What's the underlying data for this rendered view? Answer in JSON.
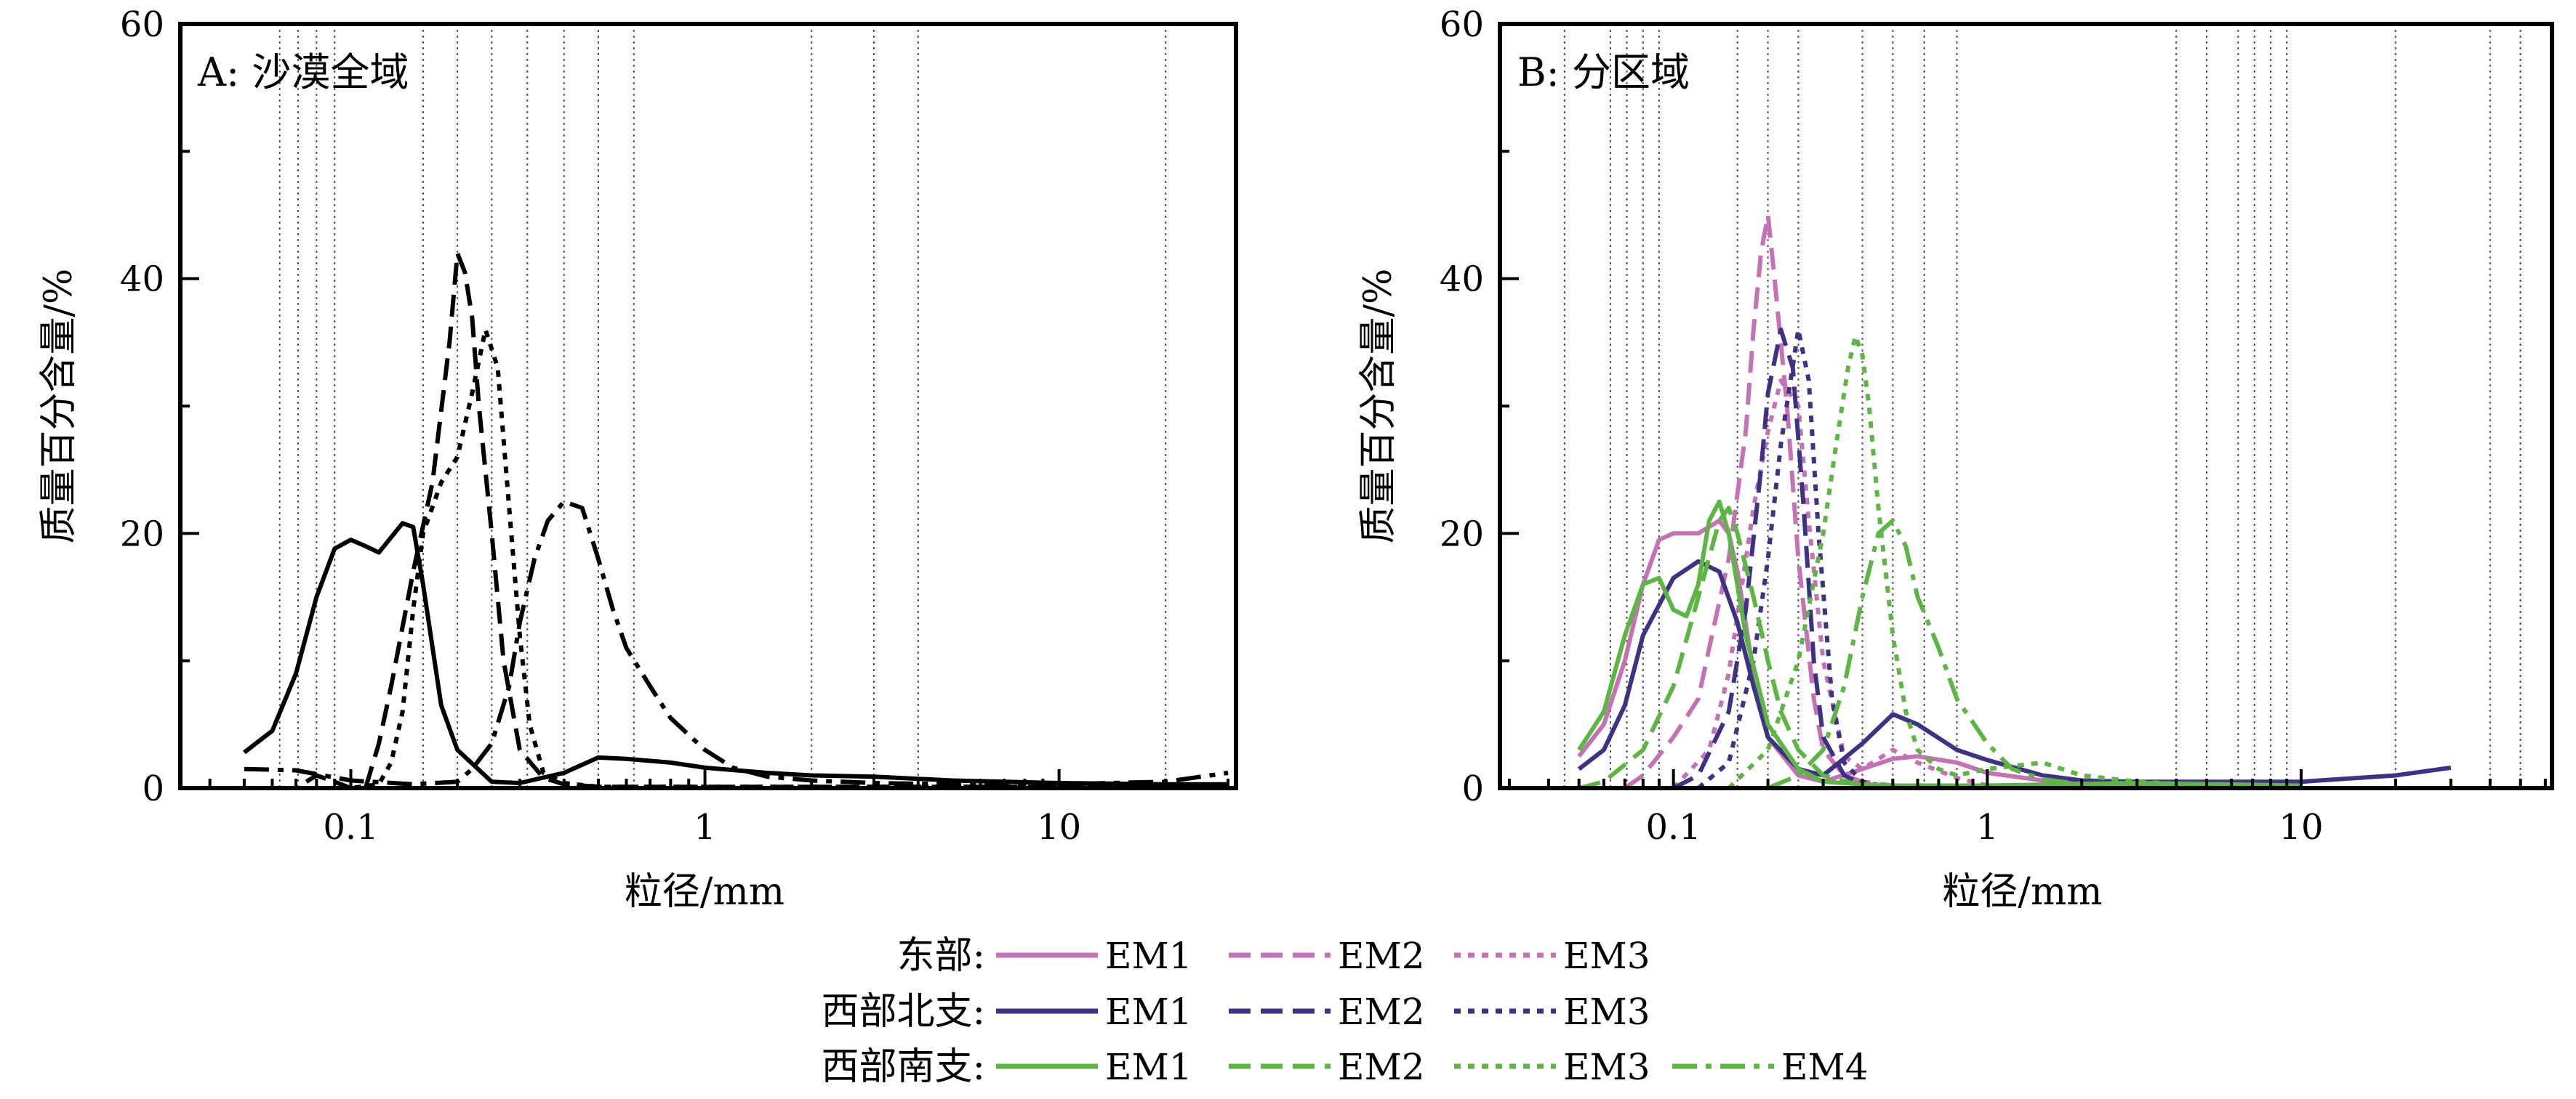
{
  "chart_data": [
    {
      "type": "line",
      "panel_label": "A: 沙漠全域",
      "xlabel": "粒径/mm",
      "ylabel": "质量百分含量/%",
      "x_scale": "log",
      "xlim": [
        0.033,
        31.6
      ],
      "ylim": [
        0,
        60
      ],
      "x_ticks": [
        0.1,
        1,
        10
      ],
      "x_tick_labels": [
        "0.1",
        "1",
        "10"
      ],
      "y_ticks": [
        0,
        20,
        40,
        60
      ],
      "y_tick_labels": [
        "0",
        "20",
        "40",
        "60"
      ],
      "grid": "vertical dotted lines at selected grain sizes",
      "grid_x": [
        0.063,
        0.071,
        0.08,
        0.09,
        0.16,
        0.2,
        0.25,
        0.315,
        0.4,
        0.5,
        0.63,
        2,
        3,
        4,
        20
      ],
      "series": [
        {
          "color": "#000000",
          "dash": "solid",
          "x": [
            0.05,
            0.06,
            0.07,
            0.08,
            0.09,
            0.1,
            0.11,
            0.12,
            0.14,
            0.15,
            0.16,
            0.18,
            0.2,
            0.25,
            0.3,
            0.4,
            0.5,
            0.6,
            0.8,
            1,
            1.5,
            2,
            3,
            5,
            10,
            20,
            30
          ],
          "y": [
            2.8,
            4.5,
            9,
            15,
            18.8,
            19.5,
            19,
            18.5,
            20.8,
            20.5,
            16,
            6.5,
            3,
            0.5,
            0.4,
            1.2,
            2.4,
            2.3,
            2,
            1.6,
            1.2,
            1,
            0.9,
            0.6,
            0.4,
            0.3,
            0.3
          ]
        },
        {
          "color": "#000000",
          "dash": "dash",
          "x": [
            0.05,
            0.07,
            0.08,
            0.09,
            0.1,
            0.11,
            0.12,
            0.13,
            0.15,
            0.17,
            0.19,
            0.2,
            0.21,
            0.22,
            0.23,
            0.25,
            0.27,
            0.3,
            0.35,
            0.4,
            0.5,
            1,
            3,
            10,
            30
          ],
          "y": [
            0,
            0,
            1,
            0.5,
            0,
            0,
            3.5,
            8,
            17,
            24,
            35,
            42,
            40.5,
            37,
            30,
            20,
            10,
            3,
            0.8,
            0.3,
            0.1,
            0.1,
            0.1,
            0.1,
            0.1
          ]
        },
        {
          "color": "#000000",
          "dash": "dot",
          "x": [
            0.05,
            0.1,
            0.12,
            0.13,
            0.14,
            0.15,
            0.16,
            0.18,
            0.2,
            0.22,
            0.24,
            0.26,
            0.28,
            0.3,
            0.32,
            0.35,
            0.4,
            0.5,
            1,
            3,
            10,
            30
          ],
          "y": [
            0,
            0,
            0.3,
            2,
            6,
            14,
            20,
            24,
            26,
            31,
            36,
            33,
            22,
            12,
            5,
            1.2,
            0.4,
            0.1,
            0.1,
            0.1,
            0.1,
            0.1
          ]
        },
        {
          "color": "#000000",
          "dash": "dashdot",
          "x": [
            0.05,
            0.07,
            0.1,
            0.15,
            0.2,
            0.22,
            0.25,
            0.28,
            0.3,
            0.33,
            0.36,
            0.4,
            0.45,
            0.5,
            0.55,
            0.6,
            0.7,
            0.8,
            1,
            1.2,
            1.5,
            2,
            3,
            5,
            10,
            20,
            30
          ],
          "y": [
            1.5,
            1.4,
            0.6,
            0.3,
            0.5,
            1.5,
            3.5,
            8,
            13,
            18,
            21,
            22.5,
            22,
            18,
            14,
            11,
            8,
            5.5,
            3,
            1.6,
            0.9,
            0.6,
            0.4,
            0.3,
            0.3,
            0.5,
            1.2
          ]
        }
      ]
    },
    {
      "type": "line",
      "panel_label": "B: 分区域",
      "xlabel": "粒径/mm",
      "ylabel": "质量百分含量/%",
      "x_scale": "log",
      "xlim": [
        0.028,
        63
      ],
      "ylim": [
        0,
        60
      ],
      "x_ticks": [
        0.1,
        1,
        10
      ],
      "x_tick_labels": [
        "0.1",
        "1",
        "10"
      ],
      "y_ticks": [
        0,
        20,
        40,
        60
      ],
      "y_tick_labels": [
        "0",
        "20",
        "40",
        "60"
      ],
      "grid": "vertical dotted lines at selected grain sizes",
      "grid_x": [
        0.045,
        0.063,
        0.071,
        0.08,
        0.09,
        0.16,
        0.2,
        0.25,
        0.4,
        0.5,
        0.63,
        0.8,
        4,
        5,
        6.3,
        7.1,
        8,
        9,
        20,
        40,
        50
      ],
      "series": [
        {
          "group": "东部",
          "name": "EM1",
          "color": "#C472B4",
          "dash": "solid",
          "x": [
            0.05,
            0.06,
            0.07,
            0.08,
            0.09,
            0.1,
            0.12,
            0.14,
            0.15,
            0.16,
            0.18,
            0.2,
            0.25,
            0.3,
            0.4,
            0.5,
            0.6,
            0.8,
            1,
            1.5,
            2,
            5,
            10
          ],
          "y": [
            2.5,
            5,
            10,
            16,
            19.5,
            20,
            20,
            21,
            20,
            17,
            9,
            4,
            1,
            0.5,
            1.5,
            2.3,
            2.5,
            2,
            1.2,
            0.6,
            0.4,
            0.2,
            0.1
          ]
        },
        {
          "group": "东部",
          "name": "EM2",
          "color": "#C472B4",
          "dash": "dash",
          "x": [
            0.07,
            0.08,
            0.1,
            0.12,
            0.13,
            0.15,
            0.17,
            0.18,
            0.19,
            0.2,
            0.21,
            0.23,
            0.25,
            0.28,
            0.3,
            0.35,
            0.4,
            0.5,
            1
          ],
          "y": [
            0,
            1,
            4,
            7,
            11,
            18,
            28,
            36,
            42,
            45,
            40,
            30,
            18,
            7,
            3,
            1,
            0.5,
            0.2,
            0
          ]
        },
        {
          "group": "东部",
          "name": "EM3",
          "color": "#C472B4",
          "dash": "dot",
          "x": [
            0.1,
            0.13,
            0.15,
            0.18,
            0.2,
            0.22,
            0.25,
            0.27,
            0.3,
            0.35,
            0.4,
            0.5,
            0.6,
            0.8,
            1
          ],
          "y": [
            0,
            3,
            9,
            22,
            28,
            32,
            30,
            21,
            10,
            2.5,
            1.5,
            3,
            2,
            0.8,
            0.2
          ]
        },
        {
          "group": "西部北支",
          "name": "EM1",
          "color": "#3E3286",
          "dash": "solid",
          "x": [
            0.05,
            0.06,
            0.07,
            0.08,
            0.1,
            0.12,
            0.14,
            0.16,
            0.18,
            0.2,
            0.25,
            0.3,
            0.4,
            0.5,
            0.6,
            0.8,
            1,
            1.5,
            2,
            3,
            5,
            10,
            20,
            30
          ],
          "y": [
            1.5,
            3,
            6.5,
            12,
            16.5,
            17.8,
            17,
            13,
            8,
            4,
            1.5,
            1,
            3.5,
            5.8,
            5,
            3,
            2.2,
            1,
            0.6,
            0.5,
            0.5,
            0.5,
            1,
            1.6
          ]
        },
        {
          "group": "西部北支",
          "name": "EM2",
          "color": "#3E3286",
          "dash": "dash",
          "x": [
            0.1,
            0.12,
            0.15,
            0.17,
            0.19,
            0.2,
            0.22,
            0.24,
            0.26,
            0.28,
            0.3,
            0.35,
            0.4,
            0.5
          ],
          "y": [
            0,
            1,
            6,
            14,
            25,
            31,
            36,
            33,
            22,
            10,
            4,
            1,
            0.3,
            0
          ]
        },
        {
          "group": "西部北支",
          "name": "EM3",
          "color": "#3E3286",
          "dash": "dot",
          "x": [
            0.12,
            0.15,
            0.18,
            0.2,
            0.22,
            0.25,
            0.27,
            0.29,
            0.32,
            0.35,
            0.4,
            0.5
          ],
          "y": [
            0,
            2,
            10,
            18,
            27,
            36,
            32,
            20,
            7,
            2,
            0.5,
            0
          ]
        },
        {
          "group": "西部南支",
          "name": "EM1",
          "color": "#5DB543",
          "dash": "solid",
          "x": [
            0.05,
            0.06,
            0.07,
            0.08,
            0.09,
            0.1,
            0.11,
            0.12,
            0.13,
            0.14,
            0.15,
            0.17,
            0.2,
            0.25,
            0.3,
            0.4,
            0.5,
            1,
            3,
            10
          ],
          "y": [
            3,
            6,
            12,
            16,
            16.5,
            14,
            13.5,
            16,
            21,
            22.5,
            20,
            12,
            5,
            1.5,
            0.5,
            0.3,
            0.2,
            0.2,
            0.4,
            0.2
          ]
        },
        {
          "group": "西部南支",
          "name": "EM2",
          "color": "#5DB543",
          "dash": "dash",
          "x": [
            0.05,
            0.06,
            0.08,
            0.1,
            0.12,
            0.14,
            0.15,
            0.16,
            0.18,
            0.2,
            0.22,
            0.25,
            0.3,
            0.4,
            0.5
          ],
          "y": [
            0,
            0.5,
            3,
            8,
            15,
            21,
            22,
            20,
            15,
            10,
            6,
            3,
            1,
            0.2,
            0
          ]
        },
        {
          "group": "西部南支",
          "name": "EM3",
          "color": "#5DB543",
          "dash": "dot",
          "x": [
            0.15,
            0.2,
            0.25,
            0.3,
            0.33,
            0.36,
            0.38,
            0.4,
            0.42,
            0.45,
            0.5,
            0.55,
            0.6,
            0.7,
            0.8,
            1,
            1.5,
            2,
            3,
            5,
            10
          ],
          "y": [
            0,
            3,
            10,
            20,
            27,
            33,
            35.5,
            34,
            30,
            22,
            12,
            6,
            3,
            1.5,
            1,
            1.5,
            2,
            1,
            0.5,
            0.2,
            0
          ]
        },
        {
          "group": "西部南支",
          "name": "EM4",
          "color": "#5DB543",
          "dash": "dashdot",
          "x": [
            0.2,
            0.25,
            0.3,
            0.35,
            0.4,
            0.45,
            0.5,
            0.55,
            0.6,
            0.7,
            0.8,
            1,
            1.2,
            1.5,
            2,
            3,
            5,
            10
          ],
          "y": [
            0,
            1,
            3,
            8,
            15,
            20,
            21,
            19,
            15,
            11,
            7,
            3.5,
            1.5,
            0.7,
            0.3,
            0.1,
            0.05,
            0
          ]
        }
      ]
    }
  ],
  "legend": {
    "rows": [
      {
        "label": "东部:",
        "entries": [
          "EM1",
          "EM2",
          "EM3"
        ],
        "color": "#C472B4"
      },
      {
        "label": "西部北支:",
        "entries": [
          "EM1",
          "EM2",
          "EM3"
        ],
        "color": "#3E3286"
      },
      {
        "label": "西部南支:",
        "entries": [
          "EM1",
          "EM2",
          "EM3",
          "EM4"
        ],
        "color": "#5DB543"
      }
    ]
  }
}
